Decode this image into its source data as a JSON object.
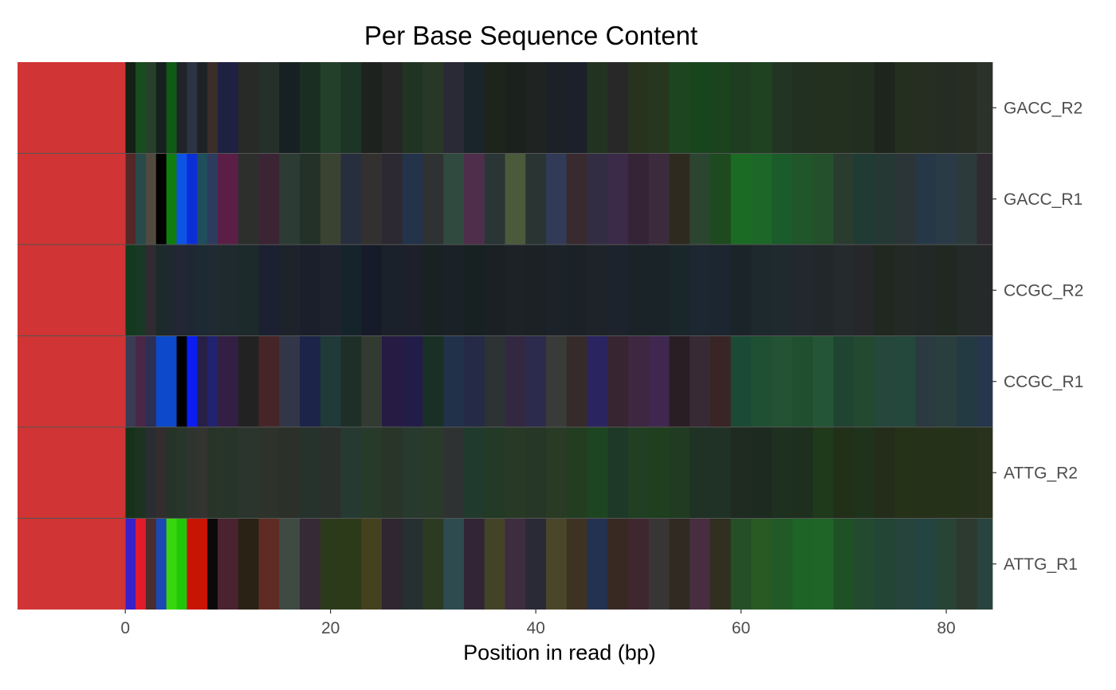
{
  "chart_data": {
    "type": "heatmap",
    "title": "Per Base Sequence Content",
    "xlabel": "Position in read (bp)",
    "ylabel": "",
    "xlim": [
      -10.5,
      84.5
    ],
    "xticks": [
      0,
      20,
      40,
      60,
      80
    ],
    "rows": [
      "GACC_R2",
      "GACC_R1",
      "CCGC_R2",
      "CCGC_R1",
      "ATTG_R2",
      "ATTG_R1"
    ],
    "row_status_color": "#d03434",
    "row_status_range": [
      -10.5,
      0
    ],
    "segments": {
      "GACC_R2": [
        [
          0,
          1,
          "#152016"
        ],
        [
          1,
          2,
          "#184d1f"
        ],
        [
          2,
          3,
          "#27402a"
        ],
        [
          3,
          4,
          "#16211d"
        ],
        [
          4,
          5,
          "#0f5a14"
        ],
        [
          5,
          6,
          "#1f2428"
        ],
        [
          6,
          7,
          "#2c3343"
        ],
        [
          7,
          8,
          "#1e2227"
        ],
        [
          8,
          9,
          "#3a2d2a"
        ],
        [
          9,
          11,
          "#1e2142"
        ],
        [
          11,
          13,
          "#272a26"
        ],
        [
          13,
          15,
          "#25302a"
        ],
        [
          15,
          17,
          "#172022"
        ],
        [
          17,
          19,
          "#1b2e22"
        ],
        [
          19,
          21,
          "#22402a"
        ],
        [
          21,
          23,
          "#1d3526"
        ],
        [
          23,
          25,
          "#1e221e"
        ],
        [
          25,
          27,
          "#262626"
        ],
        [
          27,
          29,
          "#203424"
        ],
        [
          29,
          31,
          "#273827"
        ],
        [
          31,
          33,
          "#292a36"
        ],
        [
          33,
          35,
          "#1a252b"
        ],
        [
          35,
          37,
          "#1d241c"
        ],
        [
          37,
          39,
          "#1b221d"
        ],
        [
          39,
          41,
          "#1f2422"
        ],
        [
          41,
          43,
          "#1c2128"
        ],
        [
          43,
          45,
          "#1c202b"
        ],
        [
          45,
          47,
          "#223322"
        ],
        [
          47,
          49,
          "#282828"
        ],
        [
          49,
          51,
          "#27331f"
        ],
        [
          51,
          53,
          "#27371f"
        ],
        [
          53,
          55,
          "#1d4620"
        ],
        [
          55,
          57,
          "#17451c"
        ],
        [
          57,
          59,
          "#1a431e"
        ],
        [
          59,
          61,
          "#1f3d20"
        ],
        [
          61,
          63,
          "#1f4220"
        ],
        [
          63,
          65,
          "#223522"
        ],
        [
          65,
          67,
          "#213021"
        ],
        [
          67,
          69,
          "#23301f"
        ],
        [
          69,
          71,
          "#24301f"
        ],
        [
          71,
          73,
          "#222e20"
        ],
        [
          73,
          75,
          "#1d251c"
        ],
        [
          75,
          77,
          "#252f1f"
        ],
        [
          77,
          79,
          "#252e21"
        ],
        [
          79,
          81,
          "#252d22"
        ],
        [
          81,
          83,
          "#282d24"
        ],
        [
          83,
          84.5,
          "#2b322a"
        ]
      ],
      "GACC_R1": [
        [
          0,
          1,
          "#552727"
        ],
        [
          1,
          2,
          "#284a4a"
        ],
        [
          2,
          3,
          "#514a3f"
        ],
        [
          3,
          4,
          "#000000"
        ],
        [
          4,
          5,
          "#107d10"
        ],
        [
          5,
          6,
          "#0d53e6"
        ],
        [
          6,
          7,
          "#0b2fd7"
        ],
        [
          7,
          8,
          "#1f4e5c"
        ],
        [
          8,
          9,
          "#2c3b5e"
        ],
        [
          9,
          11,
          "#5b1f47"
        ],
        [
          11,
          13,
          "#2c2f2c"
        ],
        [
          13,
          15,
          "#3b2433"
        ],
        [
          15,
          17,
          "#2c3b34"
        ],
        [
          17,
          19,
          "#233129"
        ],
        [
          19,
          21,
          "#3a4231"
        ],
        [
          21,
          23,
          "#272e3d"
        ],
        [
          23,
          25,
          "#333130"
        ],
        [
          25,
          27,
          "#2c2932"
        ],
        [
          27,
          29,
          "#23334a"
        ],
        [
          29,
          31,
          "#2f3232"
        ],
        [
          31,
          33,
          "#304a3f"
        ],
        [
          33,
          35,
          "#4f2e4c"
        ],
        [
          35,
          37,
          "#2a3535"
        ],
        [
          37,
          39,
          "#4b5a3b"
        ],
        [
          39,
          41,
          "#2a3533"
        ],
        [
          41,
          43,
          "#313a57"
        ],
        [
          43,
          45,
          "#382a2f"
        ],
        [
          45,
          47,
          "#322d43"
        ],
        [
          47,
          49,
          "#3b2a48"
        ],
        [
          49,
          51,
          "#352337"
        ],
        [
          51,
          53,
          "#3c2b3c"
        ],
        [
          53,
          55,
          "#2f2a20"
        ],
        [
          55,
          57,
          "#2b4530"
        ],
        [
          57,
          59,
          "#1e4a1f"
        ],
        [
          59,
          61,
          "#1b6b24"
        ],
        [
          61,
          63,
          "#1d6829"
        ],
        [
          63,
          65,
          "#1a5c2a"
        ],
        [
          65,
          67,
          "#21552a"
        ],
        [
          67,
          69,
          "#25502c"
        ],
        [
          69,
          71,
          "#2a3b30"
        ],
        [
          71,
          73,
          "#1f3b33"
        ],
        [
          73,
          75,
          "#253834"
        ],
        [
          75,
          77,
          "#2b3538"
        ],
        [
          77,
          79,
          "#263847"
        ],
        [
          79,
          81,
          "#2b3a47"
        ],
        [
          81,
          83,
          "#2c3a3b"
        ],
        [
          83,
          84.5,
          "#302a31"
        ]
      ],
      "CCGC_R2": [
        [
          0,
          1,
          "#133a1f"
        ],
        [
          1,
          2,
          "#1a3826"
        ],
        [
          2,
          3,
          "#2f2b30"
        ],
        [
          3,
          4,
          "#1c2a2b"
        ],
        [
          4,
          5,
          "#1f2830"
        ],
        [
          5,
          6,
          "#222635"
        ],
        [
          6,
          7,
          "#1f2634"
        ],
        [
          7,
          8,
          "#1c2b33"
        ],
        [
          8,
          9,
          "#1f2a33"
        ],
        [
          9,
          11,
          "#1e2a2d"
        ],
        [
          11,
          13,
          "#1c2a2b"
        ],
        [
          13,
          15,
          "#1c2131"
        ],
        [
          15,
          17,
          "#1d232b"
        ],
        [
          17,
          19,
          "#1b1f2b"
        ],
        [
          19,
          21,
          "#1d222d"
        ],
        [
          21,
          23,
          "#15242b"
        ],
        [
          23,
          25,
          "#161b2a"
        ],
        [
          25,
          27,
          "#1b212a"
        ],
        [
          27,
          29,
          "#1d1f2a"
        ],
        [
          29,
          31,
          "#182223"
        ],
        [
          31,
          33,
          "#1a2228"
        ],
        [
          33,
          35,
          "#172122"
        ],
        [
          35,
          37,
          "#1a2024"
        ],
        [
          37,
          39,
          "#1d2227"
        ],
        [
          39,
          41,
          "#1b2124"
        ],
        [
          41,
          43,
          "#1c2229"
        ],
        [
          43,
          45,
          "#1a2127"
        ],
        [
          45,
          47,
          "#1d2329"
        ],
        [
          47,
          49,
          "#1c232c"
        ],
        [
          49,
          51,
          "#1a2328"
        ],
        [
          51,
          53,
          "#1a2328"
        ],
        [
          53,
          55,
          "#1a272a"
        ],
        [
          55,
          57,
          "#1d2731"
        ],
        [
          57,
          59,
          "#1c2630"
        ],
        [
          59,
          61,
          "#1b2529"
        ],
        [
          61,
          63,
          "#1d292d"
        ],
        [
          63,
          65,
          "#1f2a2f"
        ],
        [
          65,
          67,
          "#22282e"
        ],
        [
          67,
          69,
          "#222729"
        ],
        [
          69,
          71,
          "#252a2c"
        ],
        [
          71,
          73,
          "#252729"
        ],
        [
          73,
          75,
          "#20281f"
        ],
        [
          75,
          77,
          "#232a26"
        ],
        [
          77,
          79,
          "#222826"
        ],
        [
          79,
          81,
          "#1f2922"
        ],
        [
          81,
          83,
          "#232a28"
        ],
        [
          83,
          84.5,
          "#262929"
        ]
      ],
      "CCGC_R1": [
        [
          0,
          1,
          "#3a3b54"
        ],
        [
          1,
          2,
          "#4a2647"
        ],
        [
          2,
          3,
          "#2d2e54"
        ],
        [
          3,
          5,
          "#0d4acb"
        ],
        [
          5,
          6,
          "#000000"
        ],
        [
          6,
          7,
          "#0b1df2"
        ],
        [
          7,
          8,
          "#262047"
        ],
        [
          8,
          9,
          "#22236f"
        ],
        [
          9,
          11,
          "#331f44"
        ],
        [
          11,
          13,
          "#222222"
        ],
        [
          13,
          15,
          "#462528"
        ],
        [
          15,
          17,
          "#313748"
        ],
        [
          17,
          19,
          "#1d2449"
        ],
        [
          19,
          21,
          "#1f3a38"
        ],
        [
          21,
          23,
          "#1e2f27"
        ],
        [
          23,
          25,
          "#333a31"
        ],
        [
          25,
          27,
          "#261c43"
        ],
        [
          27,
          29,
          "#221d48"
        ],
        [
          29,
          31,
          "#193026"
        ],
        [
          31,
          33,
          "#22314a"
        ],
        [
          33,
          35,
          "#252a46"
        ],
        [
          35,
          37,
          "#2d3335"
        ],
        [
          37,
          39,
          "#332841"
        ],
        [
          39,
          41,
          "#2c2b4e"
        ],
        [
          41,
          43,
          "#383b37"
        ],
        [
          43,
          45,
          "#362b2b"
        ],
        [
          45,
          47,
          "#2a2461"
        ],
        [
          47,
          49,
          "#372531"
        ],
        [
          49,
          51,
          "#3e2740"
        ],
        [
          51,
          53,
          "#402750"
        ],
        [
          53,
          55,
          "#2a1e25"
        ],
        [
          55,
          57,
          "#372a35"
        ],
        [
          57,
          59,
          "#3a2526"
        ],
        [
          59,
          61,
          "#1b4b36"
        ],
        [
          61,
          63,
          "#1f5033"
        ],
        [
          63,
          65,
          "#245234"
        ],
        [
          65,
          67,
          "#204f2f"
        ],
        [
          67,
          69,
          "#245537"
        ],
        [
          69,
          71,
          "#204432"
        ],
        [
          71,
          73,
          "#234930"
        ],
        [
          73,
          75,
          "#26473c"
        ],
        [
          75,
          77,
          "#24483b"
        ],
        [
          77,
          79,
          "#2b3a40"
        ],
        [
          79,
          81,
          "#293f3e"
        ],
        [
          81,
          83,
          "#243a42"
        ],
        [
          83,
          84.5,
          "#26364c"
        ]
      ],
      "ATTG_R2": [
        [
          0,
          1,
          "#16331a"
        ],
        [
          1,
          2,
          "#1d3321"
        ],
        [
          2,
          3,
          "#2a2d31"
        ],
        [
          3,
          4,
          "#332d2f"
        ],
        [
          4,
          5,
          "#253328"
        ],
        [
          5,
          6,
          "#27352b"
        ],
        [
          6,
          7,
          "#2f3430"
        ],
        [
          7,
          8,
          "#333430"
        ],
        [
          8,
          9,
          "#283428"
        ],
        [
          9,
          11,
          "#273528"
        ],
        [
          11,
          13,
          "#2b352d"
        ],
        [
          13,
          15,
          "#2d332a"
        ],
        [
          15,
          17,
          "#2b302a"
        ],
        [
          17,
          19,
          "#25332c"
        ],
        [
          19,
          21,
          "#2b302c"
        ],
        [
          21,
          23,
          "#263a32"
        ],
        [
          23,
          25,
          "#283a2a"
        ],
        [
          25,
          27,
          "#293528"
        ],
        [
          27,
          29,
          "#273a2d"
        ],
        [
          29,
          31,
          "#2a3a2a"
        ],
        [
          31,
          33,
          "#2e3232"
        ],
        [
          33,
          35,
          "#213a2e"
        ],
        [
          35,
          37,
          "#233a26"
        ],
        [
          37,
          39,
          "#283a25"
        ],
        [
          39,
          41,
          "#273727"
        ],
        [
          41,
          43,
          "#2a3b25"
        ],
        [
          43,
          45,
          "#233d21"
        ],
        [
          45,
          47,
          "#1e4522"
        ],
        [
          47,
          49,
          "#1e3927"
        ],
        [
          49,
          51,
          "#213f22"
        ],
        [
          51,
          53,
          "#1f3f1f"
        ],
        [
          53,
          55,
          "#203b21"
        ],
        [
          55,
          57,
          "#1f3224"
        ],
        [
          57,
          59,
          "#203226"
        ],
        [
          59,
          61,
          "#1f2a21"
        ],
        [
          61,
          63,
          "#1d2a1f"
        ],
        [
          63,
          65,
          "#1e301f"
        ],
        [
          65,
          67,
          "#1f2f1f"
        ],
        [
          67,
          69,
          "#1f3a1a"
        ],
        [
          69,
          71,
          "#222f19"
        ],
        [
          71,
          73,
          "#1f331c"
        ],
        [
          73,
          75,
          "#232d19"
        ],
        [
          75,
          77,
          "#263218"
        ],
        [
          77,
          79,
          "#263119"
        ],
        [
          79,
          81,
          "#253219"
        ],
        [
          81,
          83,
          "#26311b"
        ],
        [
          83,
          84.5,
          "#28321c"
        ]
      ],
      "ATTG_R1": [
        [
          0,
          1,
          "#3a20c9"
        ],
        [
          1,
          2,
          "#e01c2a"
        ],
        [
          2,
          3,
          "#4a2d2d"
        ],
        [
          3,
          4,
          "#1b48b3"
        ],
        [
          4,
          5,
          "#38d60c"
        ],
        [
          5,
          6,
          "#22c70a"
        ],
        [
          6,
          8,
          "#c81403"
        ],
        [
          8,
          9,
          "#0a0a0a"
        ],
        [
          9,
          11,
          "#4a2230"
        ],
        [
          11,
          13,
          "#2a2214"
        ],
        [
          13,
          15,
          "#5e2c24"
        ],
        [
          15,
          17,
          "#3f4a42"
        ],
        [
          17,
          19,
          "#352a35"
        ],
        [
          19,
          21,
          "#2c3a1c"
        ],
        [
          21,
          23,
          "#2d3a1a"
        ],
        [
          23,
          25,
          "#45411e"
        ],
        [
          25,
          27,
          "#302631"
        ],
        [
          27,
          29,
          "#273030"
        ],
        [
          29,
          31,
          "#2b3b22"
        ],
        [
          31,
          33,
          "#2e4b50"
        ],
        [
          33,
          35,
          "#322636"
        ],
        [
          35,
          37,
          "#434327"
        ],
        [
          37,
          39,
          "#3e2c3f"
        ],
        [
          39,
          41,
          "#2a2936"
        ],
        [
          41,
          43,
          "#49462a"
        ],
        [
          43,
          45,
          "#3e3222"
        ],
        [
          45,
          47,
          "#243252"
        ],
        [
          47,
          49,
          "#382923"
        ],
        [
          49,
          51,
          "#3f2730"
        ],
        [
          51,
          53,
          "#383535"
        ],
        [
          53,
          55,
          "#302a23"
        ],
        [
          55,
          57,
          "#472d3f"
        ],
        [
          57,
          59,
          "#302f20"
        ],
        [
          59,
          61,
          "#254f26"
        ],
        [
          61,
          63,
          "#2a5a23"
        ],
        [
          63,
          65,
          "#215a27"
        ],
        [
          65,
          67,
          "#1d6426"
        ],
        [
          67,
          69,
          "#1f6527"
        ],
        [
          69,
          71,
          "#1e5226"
        ],
        [
          71,
          73,
          "#234a2f"
        ],
        [
          73,
          75,
          "#234535"
        ],
        [
          75,
          77,
          "#26443c"
        ],
        [
          77,
          79,
          "#234441"
        ],
        [
          79,
          81,
          "#274436"
        ],
        [
          81,
          83,
          "#2d3a30"
        ],
        [
          83,
          84.5,
          "#29443f"
        ]
      ]
    }
  }
}
